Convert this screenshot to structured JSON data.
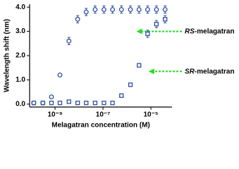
{
  "chart_data": {
    "type": "scatter",
    "x_label": "Melagatran concentration (M)",
    "y_label": "Wavelength shift (nm)",
    "xscale": "log",
    "x": [
      1.3e-10,
      3.1e-10,
      7.1e-10,
      1.6e-09,
      3.8e-09,
      8.8e-09,
      2e-08,
      4.7e-08,
      1.1e-07,
      2.5e-07,
      5.9e-07,
      1.4e-06,
      3.2e-06,
      7.3e-06,
      1.7e-05,
      3.9e-05
    ],
    "series": [
      {
        "name": "RS-melagatran",
        "marker": "circle",
        "color": "#2d4f9e",
        "values": [
          0.05,
          0.05,
          0.3,
          1.2,
          2.6,
          3.5,
          3.8,
          3.9,
          3.9,
          3.9,
          3.9,
          3.9,
          3.9,
          3.9,
          3.9,
          3.9
        ],
        "errors": [
          0.05,
          0.05,
          0.05,
          0.05,
          0.15,
          0.15,
          0.15,
          0.15,
          0.15,
          0.15,
          0.15,
          0.15,
          0.15,
          0.15,
          0.15,
          0.15
        ]
      },
      {
        "name": "SR-melagatran",
        "marker": "square",
        "color": "#2d4f9e",
        "values": [
          0.05,
          0.05,
          0.05,
          0.05,
          0.1,
          0.05,
          0.05,
          0.05,
          0.05,
          0.05,
          0.35,
          0.8,
          1.6,
          2.9,
          3.3,
          3.5
        ],
        "errors": [
          0.05,
          0.05,
          0.05,
          0.05,
          0.05,
          0.05,
          0.05,
          0.05,
          0.05,
          0.05,
          0.05,
          0.05,
          0.05,
          0.15,
          0.15,
          0.15
        ]
      }
    ],
    "annotations": [
      {
        "italic": "RS",
        "text": "-melagatran",
        "value": 3.0,
        "x_from": 2.5e-06,
        "color": "#22dd22"
      },
      {
        "italic": "SR",
        "text": "-melagatran",
        "value": 1.35,
        "x_from": 8e-06,
        "color": "#22dd22"
      }
    ],
    "xlim": [
      8.7e-11,
      7.6e-05
    ],
    "xticks": [
      {
        "value": 1e-09,
        "label": "10⁻⁹"
      },
      {
        "value": 1e-07,
        "label": "10⁻⁷"
      },
      {
        "value": 1e-05,
        "label": "10⁻⁵"
      }
    ],
    "ylim": [
      -0.12,
      4.12
    ],
    "yticks": [
      {
        "value": 0,
        "label": "0.0"
      },
      {
        "value": 1,
        "label": "1.0"
      },
      {
        "value": 2,
        "label": "2.0"
      },
      {
        "value": 3,
        "label": "3.0"
      },
      {
        "value": 4,
        "label": "4.0"
      }
    ]
  }
}
